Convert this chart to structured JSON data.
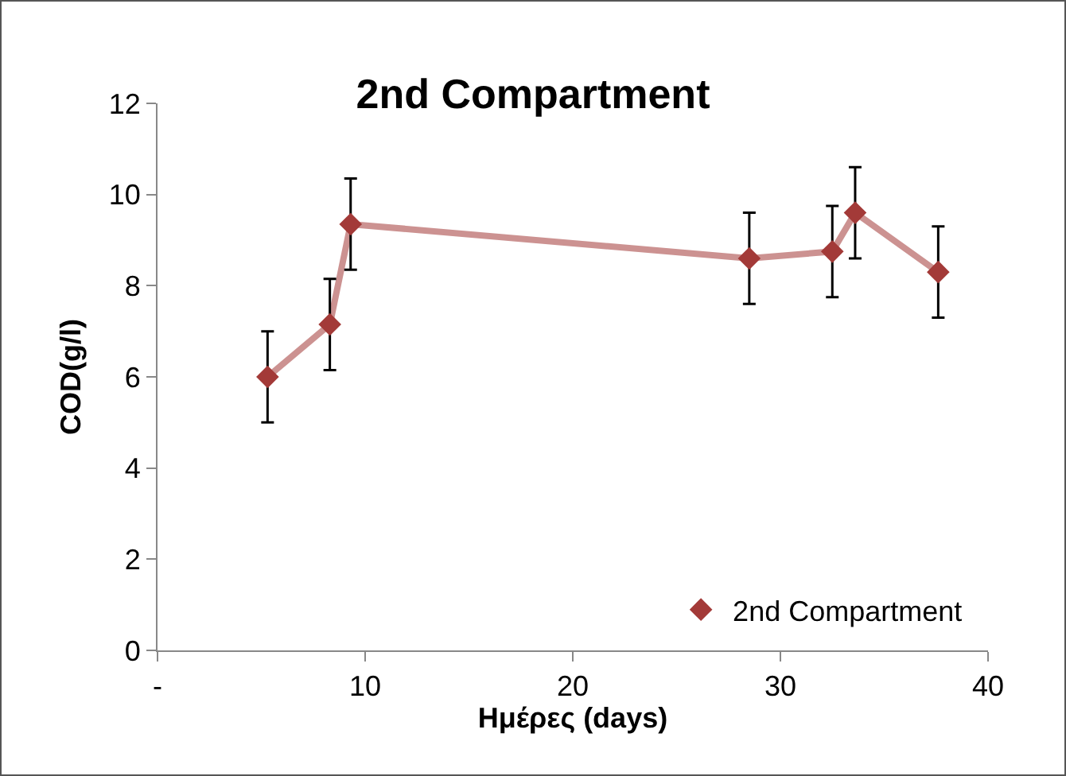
{
  "chart_data": {
    "type": "line",
    "title": "2nd Compartment",
    "xlabel": "Ημέρες (days)",
    "ylabel": "COD(g/l)",
    "series": [
      {
        "name": "2nd Compartment",
        "color": "#a33a38",
        "x": [
          5.3,
          8.3,
          9.3,
          28.5,
          32.5,
          33.6,
          37.6
        ],
        "values": [
          6.0,
          7.15,
          9.35,
          8.6,
          8.75,
          9.6,
          8.3
        ],
        "errors": [
          1,
          1,
          1,
          1,
          1,
          1,
          1
        ]
      }
    ],
    "xlim": [
      0,
      40
    ],
    "xticks": [
      {
        "value": 0,
        "label": "-"
      },
      10,
      20,
      30,
      40
    ],
    "ylim": [
      0,
      12
    ],
    "yticks": [
      0,
      2,
      4,
      6,
      8,
      10,
      12
    ],
    "grid": false,
    "legend": "bottom right",
    "marker": "diamond",
    "line_style": "solid"
  }
}
